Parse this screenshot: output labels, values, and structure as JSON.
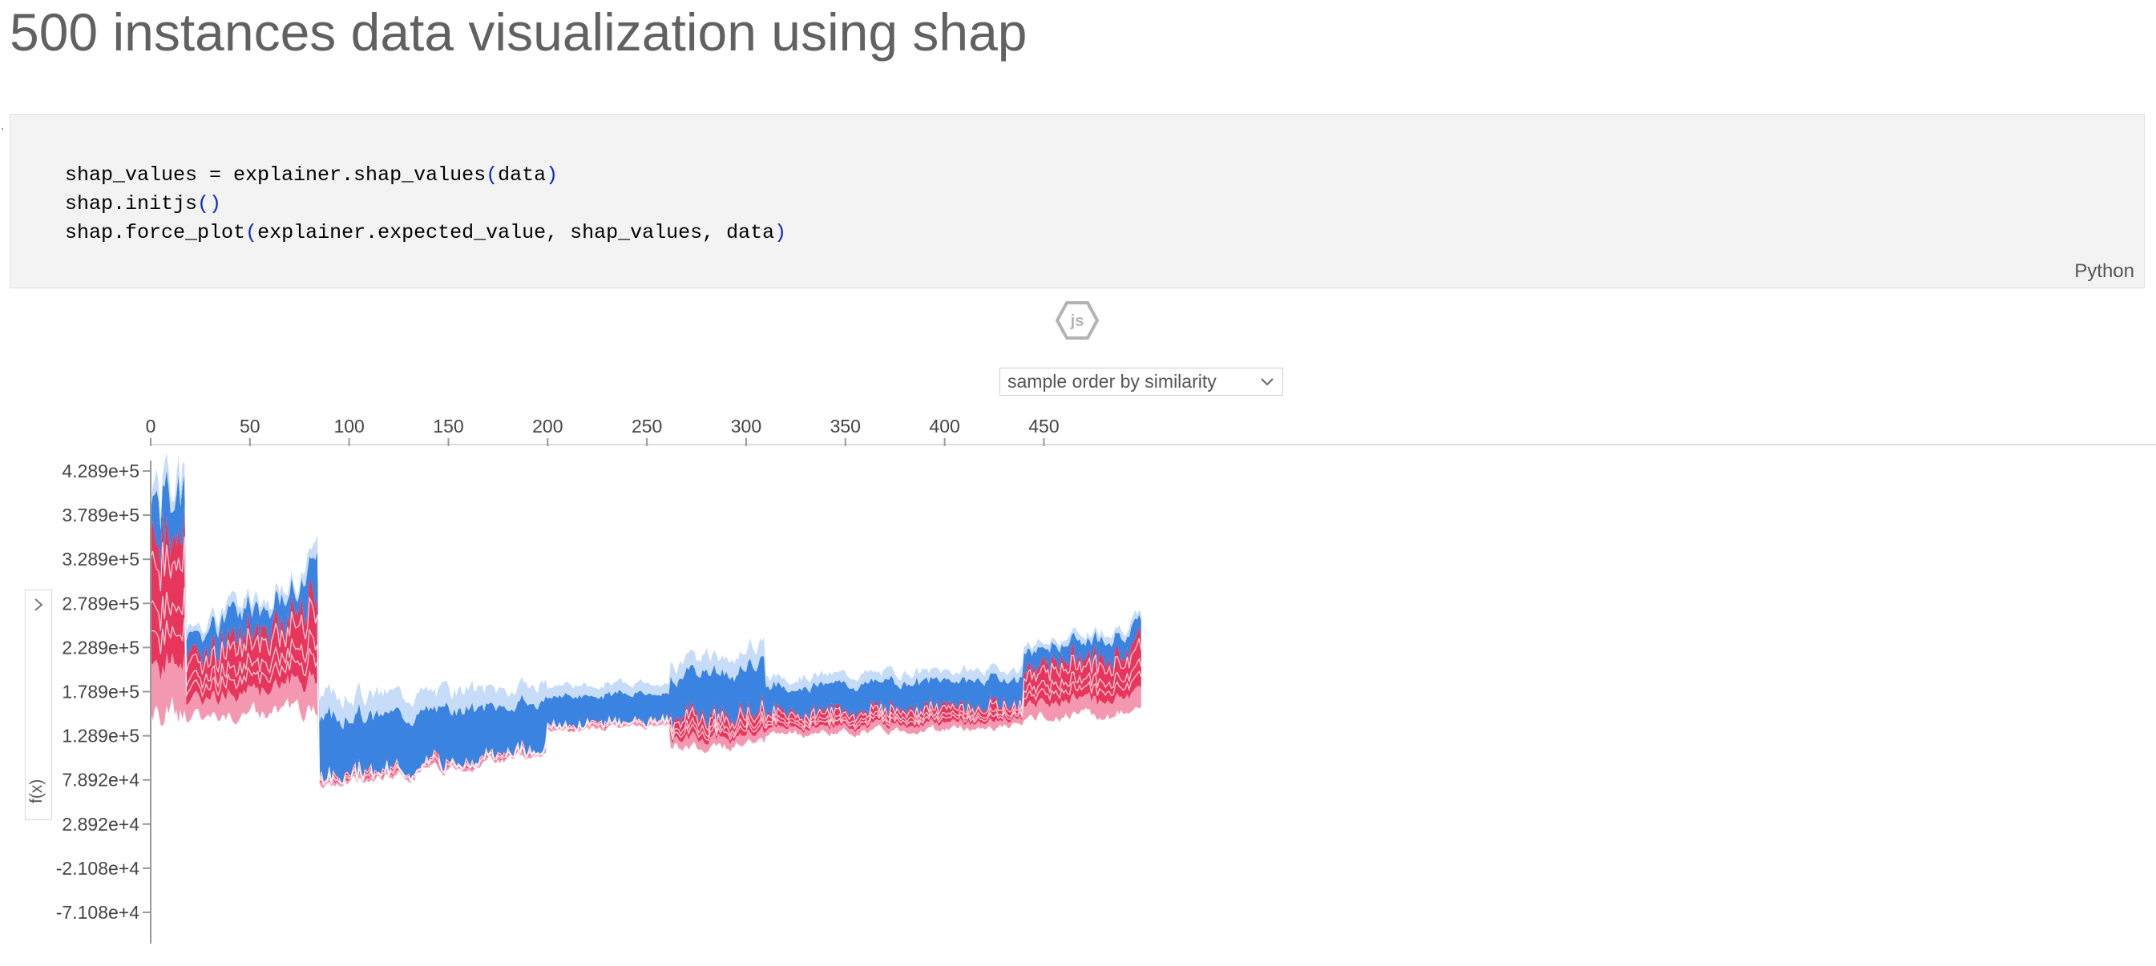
{
  "page": {
    "title": "500 instances data visualization using shap"
  },
  "code_cell": {
    "lines": [
      {
        "pre": "shap_values = explainer.shap_values",
        "open": "(",
        "args": "data",
        "close": ")"
      },
      {
        "pre": "shap.initjs",
        "open": "(",
        "args": "",
        "close": ")"
      },
      {
        "pre": "shap.force_plot",
        "open": "(",
        "args": "explainer.expected_value, shap_values, data",
        "close": ")"
      }
    ],
    "language": "Python"
  },
  "js_badge": {
    "text": "js"
  },
  "controls": {
    "order_selected": "sample order by similarity"
  },
  "side_panel": {
    "fx_label": "f(x)"
  },
  "colors": {
    "red": "#e8355c",
    "pink": "#f498b1",
    "blue": "#3b83e0",
    "light_blue": "#c6dcf8"
  },
  "chart_data": {
    "type": "area",
    "x_ticks": [
      0,
      50,
      100,
      150,
      200,
      250,
      300,
      350,
      400,
      450
    ],
    "x_range": [
      0,
      500
    ],
    "y_ticks": [
      "4.289e+5",
      "3.789e+5",
      "3.289e+5",
      "2.789e+5",
      "2.289e+5",
      "1.789e+5",
      "1.289e+5",
      "7.892e+4",
      "2.892e+4",
      "-2.108e+4",
      "-7.108e+4"
    ],
    "y_range": [
      -96000.0,
      445000.0
    ],
    "segments": [
      {
        "x": [
          0,
          18
        ],
        "top": [
          390000.0,
          430000.0
        ],
        "bottom": [
          160000.0,
          150000.0
        ],
        "pos": 0.75,
        "spread": 0.35,
        "seed": 1
      },
      {
        "x": [
          18,
          85
        ],
        "top": [
          250000.0,
          320000.0
        ],
        "bottom": [
          150000.0,
          160000.0
        ],
        "pos": 0.72,
        "spread": 0.3,
        "seed": 2
      },
      {
        "x": [
          85,
          200
        ],
        "top": [
          175000.0,
          185000.0
        ],
        "bottom": [
          70000.0,
          110000.0
        ],
        "pos": 0.08,
        "spread": 0.25,
        "seed": 3
      },
      {
        "x": [
          200,
          262
        ],
        "top": [
          185000.0,
          190000.0
        ],
        "bottom": [
          135000.0,
          140000.0
        ],
        "pos": 0.15,
        "spread": 0.2,
        "seed": 4
      },
      {
        "x": [
          262,
          310
        ],
        "top": [
          205000.0,
          235000.0
        ],
        "bottom": [
          115000.0,
          120000.0
        ],
        "pos": 0.35,
        "spread": 0.25,
        "seed": 5
      },
      {
        "x": [
          310,
          440
        ],
        "top": [
          195000.0,
          205000.0
        ],
        "bottom": [
          130000.0,
          140000.0
        ],
        "pos": 0.4,
        "spread": 0.2,
        "seed": 6
      },
      {
        "x": [
          440,
          500
        ],
        "top": [
          230000.0,
          260000.0
        ],
        "bottom": [
          150000.0,
          155000.0
        ],
        "pos": 0.72,
        "spread": 0.2,
        "seed": 7
      }
    ]
  }
}
